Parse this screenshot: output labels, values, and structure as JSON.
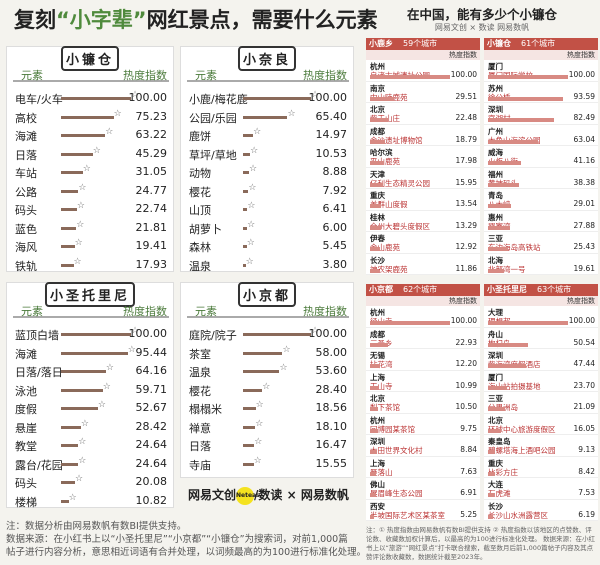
{
  "title": {
    "pre": "复刻",
    "highlight": "“小字辈”",
    "post": "网红景点，需要什么元素"
  },
  "col_left": "元素",
  "col_right": "热度指数",
  "colors": {
    "bar": "#8a6a5a",
    "accent": "#4f8a3c",
    "red": "#c25146"
  },
  "chart_data": [
    {
      "type": "bar",
      "title": "小镰仓",
      "categories": [
        "电车/火车",
        "高校",
        "海滩",
        "日落",
        "车站",
        "公路",
        "码头",
        "蓝色",
        "海风",
        "铁轨"
      ],
      "values": [
        100.0,
        75.23,
        63.22,
        45.29,
        31.05,
        24.77,
        22.74,
        21.81,
        19.41,
        17.93
      ],
      "value_labels": [
        "100.00",
        "75.23",
        "63.22",
        "45.29",
        "31.05",
        "24.77",
        "22.74",
        "21.81",
        "19.41",
        "17.93"
      ]
    },
    {
      "type": "bar",
      "title": "小奈良",
      "categories": [
        "小鹿/梅花鹿",
        "公园/乐园",
        "鹿饼",
        "草坪/草地",
        "动物",
        "樱花",
        "山顶",
        "胡萝卜",
        "森林",
        "温泉"
      ],
      "values": [
        100.0,
        65.4,
        14.97,
        10.53,
        8.88,
        7.92,
        6.41,
        6.0,
        5.45,
        3.8
      ],
      "value_labels": [
        "100.00",
        "65.40",
        "14.97",
        "10.53",
        "8.88",
        "7.92",
        "6.41",
        "6.00",
        "5.45",
        "3.80"
      ]
    },
    {
      "type": "bar",
      "title": "小圣托里尼",
      "categories": [
        "蓝顶白墙",
        "海滩",
        "日落/落日",
        "泳池",
        "度假",
        "悬崖",
        "教堂",
        "露台/花园",
        "码头",
        "楼梯"
      ],
      "values": [
        100.0,
        95.44,
        64.16,
        59.71,
        52.67,
        28.42,
        24.64,
        24.64,
        20.08,
        10.82
      ],
      "value_labels": [
        "100.00",
        "95.44",
        "64.16",
        "59.71",
        "52.67",
        "28.42",
        "24.64",
        "24.64",
        "20.08",
        "10.82"
      ]
    },
    {
      "type": "bar",
      "title": "小京都",
      "categories": [
        "庭院/院子",
        "茶室",
        "温泉",
        "樱花",
        "榻榻米",
        "禅意",
        "日落",
        "寺庙"
      ],
      "values": [
        100.0,
        58.0,
        53.6,
        28.4,
        18.56,
        18.1,
        16.47,
        15.55
      ],
      "value_labels": [
        "100.00",
        "58.00",
        "53.60",
        "28.40",
        "18.56",
        "18.10",
        "16.47",
        "15.55"
      ]
    },
    {
      "type": "table",
      "title": "小京都",
      "count": "62个城市",
      "rows": [
        [
          "杭州",
          "径山寺",
          "100.00",
          100
        ],
        [
          "成都",
          "三圣乡",
          "22.93",
          22.93
        ],
        [
          "无锡",
          "拈花湾",
          "12.20",
          12.2
        ],
        [
          "上海",
          "玉山寺",
          "10.99",
          10.99
        ],
        [
          "北京",
          "梨下茶馆",
          "10.50",
          10.5
        ],
        [
          "杭州",
          "回博园某茶馆",
          "9.75",
          9.75
        ],
        [
          "深圳",
          "大田世界文化村",
          "8.84",
          8.84
        ],
        [
          "上海",
          "雁落山",
          "7.63",
          7.63
        ],
        [
          "佛山",
          "展眉峰生态公园",
          "6.91",
          6.91
        ],
        [
          "西安",
          "半坡国际艺术区某茶室",
          "5.25",
          5.25
        ]
      ]
    },
    {
      "type": "table",
      "title": "小圣托里尼",
      "count": "63个城市",
      "rows": [
        [
          "大理",
          "理想邦",
          "100.00",
          100
        ],
        [
          "舟山",
          "枸杞岛",
          "50.54",
          50.54
        ],
        [
          "深圳",
          "紫海湾度假酒店",
          "47.44",
          47.44
        ],
        [
          "厦门",
          "海山站拍摄基地",
          "23.70",
          23.7
        ],
        [
          "三亚",
          "分界洲岛",
          "21.09",
          21.09
        ],
        [
          "北京",
          "环球中心旅游度假区",
          "16.05",
          16.05
        ],
        [
          "秦皇岛",
          "碧螺塔海上酒吧公园",
          "9.13",
          9.13
        ],
        [
          "重庆",
          "比彩方庄",
          "8.42",
          8.42
        ],
        [
          "大连",
          "石虎滩",
          "7.53",
          7.53
        ],
        [
          "长沙",
          "长沙山水洲露营区",
          "6.19",
          6.19
        ]
      ]
    },
    {
      "type": "table",
      "title": "小鹿乡",
      "count": "59个城市",
      "rows": [
        [
          "杭州",
          "良渚古城遗址公园",
          "100.00",
          100
        ],
        [
          "南京",
          "中山陵鹿苑",
          "29.51",
          29.51
        ],
        [
          "北京",
          "紫玉山庄",
          "22.48",
          22.48
        ],
        [
          "成都",
          "金沙遗址博物馆",
          "18.79",
          18.79
        ],
        [
          "哈尔滨",
          "平山鹿苑",
          "17.98",
          17.98
        ],
        [
          "天津",
          "亿利生态精灵公园",
          "15.95",
          15.95
        ],
        [
          "重庆",
          "羊群山度假",
          "13.54",
          13.54
        ],
        [
          "桂林",
          "全州大碧头度假区",
          "13.29",
          13.29
        ],
        [
          "伊春",
          "金山鹿苑",
          "12.92",
          12.92
        ],
        [
          "长沙",
          "神农架鹿苑",
          "11.86",
          11.86
        ]
      ]
    },
    {
      "type": "table",
      "title": "小镰仓",
      "count": "61个城市",
      "rows": [
        [
          "厦门",
          "厦门国际学校",
          "100.00",
          100
        ],
        [
          "苏州",
          "徐公桥",
          "93.59",
          93.59
        ],
        [
          "深圳",
          "官湖村",
          "82.49",
          82.49
        ],
        [
          "广州",
          "大角山海滨公园",
          "63.04",
          63.04
        ],
        [
          "威海",
          "火炬八街",
          "41.16",
          41.16
        ],
        [
          "福州",
          "黄坡码头",
          "38.38",
          38.38
        ],
        [
          "青岛",
          "八大峡",
          "29.01",
          29.01
        ],
        [
          "惠州",
          "巽寮湾",
          "27.88",
          27.88
        ],
        [
          "三亚",
          "东边海岛高铁站",
          "25.43",
          25.43
        ],
        [
          "北海",
          "北部湾一号",
          "19.61",
          19.61
        ]
      ]
    }
  ],
  "brand": {
    "a": "网易文创",
    "b": "数读",
    "x": "×",
    "c": "网易数帆",
    "dot": "Neteas"
  },
  "notes": [
    "注：数据分析由网易数帆有数BI提供支持。",
    "数据来源：在小红书上以“小圣托里尼”“小京都”“小镰仓”为搜索词，对前1,000篇",
    "帖子进行内容分析，意思相近词语有合并处理，以词频最高的为100进行标准化处理。"
  ],
  "right": {
    "title": "在中国，能有多少个小镰仓",
    "sub": "网易文创 × 数读 网易数帆",
    "subhead": "热度指数",
    "note": "注：① 热度指数由网易数帆有数BI提供支持 ② 热度指数以该地区的点赞数、评论数、收藏数加权计算后，以最高的为100进行标准化处理。 数据来源：在小红书上以“旅游”“网红景点”打卡联合搜索，截至数月后前1,000篇帖子内容及其点赞评论数收藏数，数据统计截至2023年。"
  }
}
